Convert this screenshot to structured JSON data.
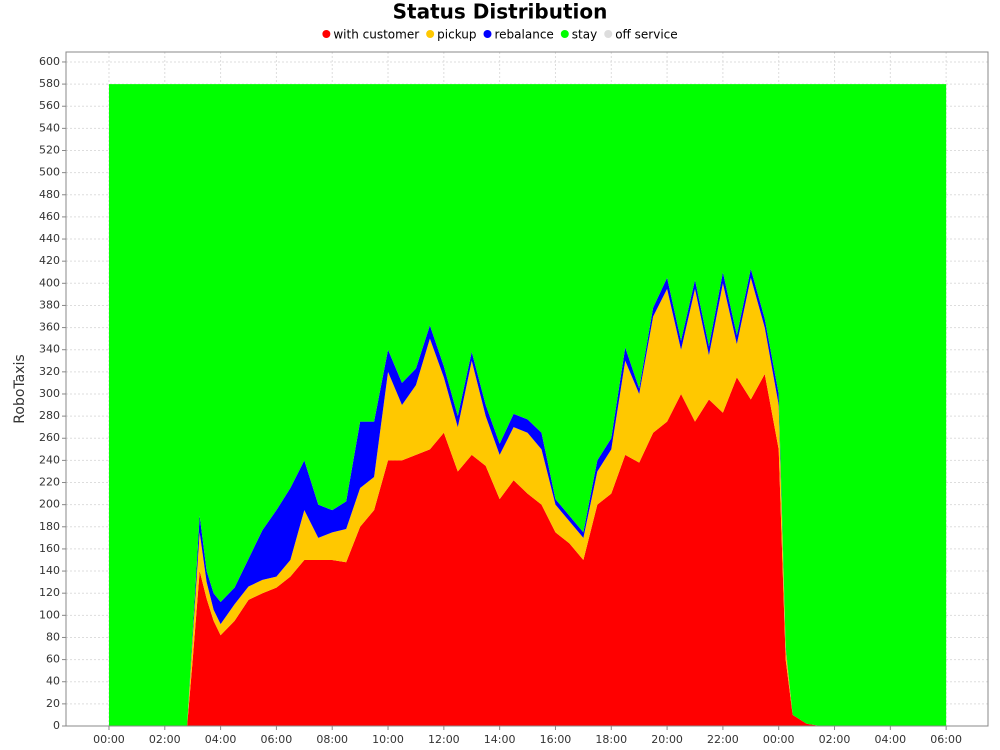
{
  "chart_data": {
    "type": "stacked_area",
    "title": "Status Distribution",
    "y_label": "RoboTaxis",
    "x": [
      0,
      1,
      2,
      2.5,
      2.8,
      3,
      3.25,
      3.5,
      3.75,
      4,
      4.5,
      5,
      5.5,
      6,
      6.5,
      7,
      7.5,
      8,
      8.5,
      9,
      9.5,
      10,
      10.5,
      11,
      11.5,
      12,
      12.5,
      13,
      13.5,
      14,
      14.5,
      15,
      15.5,
      16,
      16.5,
      17,
      17.5,
      18,
      18.5,
      19,
      19.5,
      20,
      20.5,
      21,
      21.5,
      22,
      22.5,
      23,
      23.5,
      24,
      24.25,
      24.5,
      25,
      25.5,
      26,
      28,
      30
    ],
    "series": [
      {
        "name": "with customer",
        "color": "#ff0000",
        "values": [
          0,
          0,
          0,
          0,
          0,
          60,
          140,
          115,
          95,
          82,
          95,
          114,
          120,
          125,
          135,
          150,
          150,
          150,
          148,
          180,
          195,
          240,
          240,
          245,
          250,
          265,
          230,
          245,
          235,
          205,
          222,
          210,
          200,
          175,
          165,
          150,
          200,
          210,
          245,
          238,
          265,
          275,
          300,
          275,
          295,
          283,
          315,
          295,
          318,
          250,
          60,
          10,
          2,
          0,
          0,
          0,
          0
        ]
      },
      {
        "name": "pickup",
        "color": "#ffc800",
        "values": [
          0,
          0,
          0,
          0,
          0,
          20,
          35,
          15,
          10,
          10,
          15,
          12,
          12,
          10,
          15,
          45,
          20,
          25,
          30,
          35,
          30,
          80,
          50,
          63,
          100,
          50,
          40,
          85,
          45,
          40,
          48,
          55,
          50,
          25,
          20,
          20,
          30,
          40,
          85,
          62,
          105,
          120,
          40,
          120,
          40,
          117,
          30,
          110,
          42,
          40,
          10,
          0,
          0,
          0,
          0,
          0,
          0
        ]
      },
      {
        "name": "rebalance",
        "color": "#0000ff",
        "values": [
          0,
          0,
          0,
          0,
          0,
          5,
          15,
          10,
          15,
          20,
          15,
          25,
          45,
          60,
          65,
          45,
          30,
          20,
          25,
          60,
          50,
          20,
          20,
          15,
          12,
          10,
          10,
          8,
          10,
          10,
          12,
          12,
          15,
          5,
          5,
          5,
          10,
          10,
          12,
          5,
          8,
          10,
          8,
          8,
          8,
          10,
          8,
          8,
          8,
          10,
          2,
          0,
          0,
          0,
          0,
          0,
          0
        ]
      },
      {
        "name": "stay",
        "color": "#00ff00",
        "values": [
          580,
          580,
          580,
          580,
          580,
          495,
          390,
          440,
          460,
          468,
          455,
          429,
          403,
          385,
          365,
          340,
          380,
          385,
          377,
          305,
          305,
          240,
          270,
          257,
          218,
          255,
          300,
          242,
          290,
          325,
          298,
          303,
          315,
          375,
          390,
          405,
          340,
          320,
          238,
          275,
          202,
          175,
          232,
          177,
          237,
          170,
          227,
          167,
          212,
          280,
          508,
          570,
          578,
          580,
          580,
          580,
          580
        ]
      },
      {
        "name": "off service",
        "color": "#dddddd",
        "values": [
          0,
          0,
          0,
          0,
          0,
          0,
          0,
          0,
          0,
          0,
          0,
          0,
          0,
          0,
          0,
          0,
          0,
          0,
          0,
          0,
          0,
          0,
          0,
          0,
          0,
          0,
          0,
          0,
          0,
          0,
          0,
          0,
          0,
          0,
          0,
          0,
          0,
          0,
          0,
          0,
          0,
          0,
          0,
          0,
          0,
          0,
          0,
          0,
          0,
          0,
          0,
          0,
          0,
          0,
          0,
          0,
          0
        ]
      }
    ],
    "xlim": [
      -1.54,
      31.5
    ],
    "xticks": [
      {
        "value": 0,
        "label": "00:00"
      },
      {
        "value": 2,
        "label": "02:00"
      },
      {
        "value": 4,
        "label": "04:00"
      },
      {
        "value": 6,
        "label": "06:00"
      },
      {
        "value": 8,
        "label": "08:00"
      },
      {
        "value": 10,
        "label": "10:00"
      },
      {
        "value": 12,
        "label": "12:00"
      },
      {
        "value": 14,
        "label": "14:00"
      },
      {
        "value": 16,
        "label": "16:00"
      },
      {
        "value": 18,
        "label": "18:00"
      },
      {
        "value": 20,
        "label": "20:00"
      },
      {
        "value": 22,
        "label": "22:00"
      },
      {
        "value": 24,
        "label": "00:00"
      },
      {
        "value": 26,
        "label": "02:00"
      },
      {
        "value": 28,
        "label": "04:00"
      },
      {
        "value": 30,
        "label": "06:00"
      }
    ],
    "ylim": [
      0,
      609
    ],
    "yticks": [
      0,
      20,
      40,
      60,
      80,
      100,
      120,
      140,
      160,
      180,
      200,
      220,
      240,
      260,
      280,
      300,
      320,
      340,
      360,
      380,
      400,
      420,
      440,
      460,
      480,
      500,
      520,
      540,
      560,
      580,
      600
    ],
    "grid": true,
    "legend": "top"
  }
}
